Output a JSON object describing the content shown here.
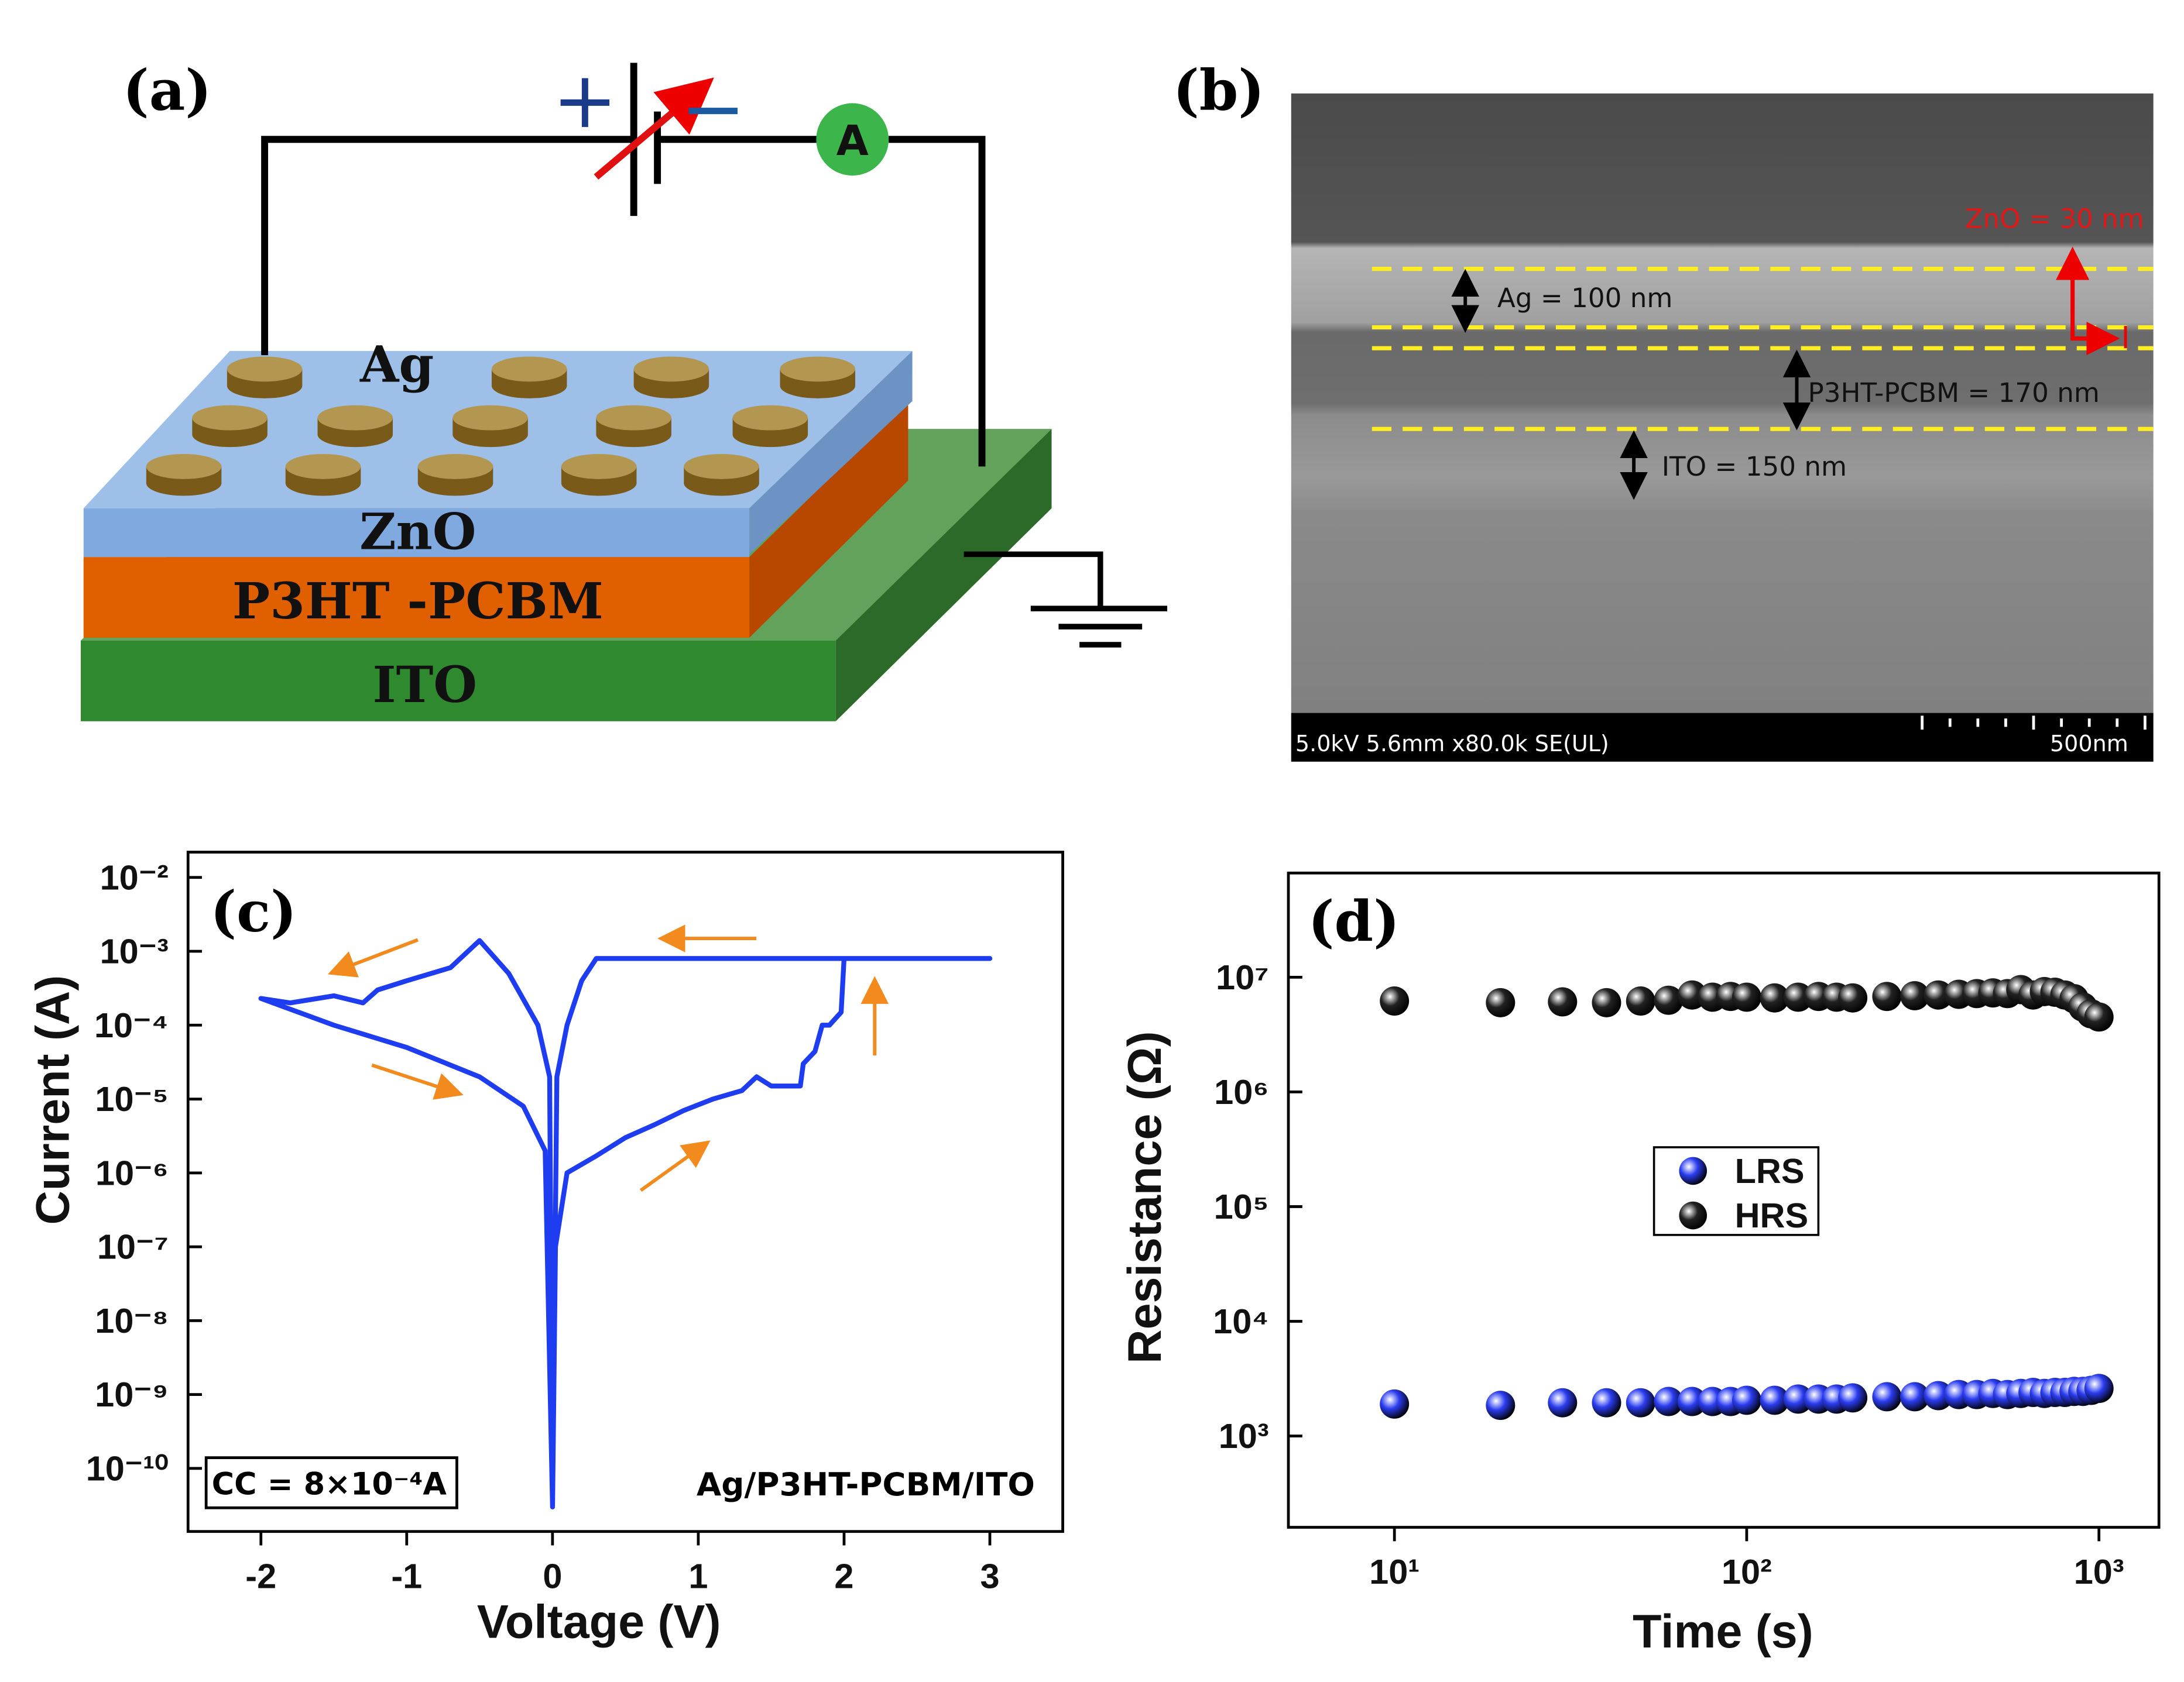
{
  "diagram": {
    "label": "(a)",
    "plus": "+",
    "minus": "−",
    "ammeter": "A",
    "layers": [
      "Ag",
      "ZnO",
      "P3HT -PCBM",
      "ITO"
    ]
  },
  "sem": {
    "label": "(b)",
    "annotations": [
      "ZnO = 30 nm",
      "Ag = 100 nm",
      "P3HT-PCBM = 170 nm",
      "ITO = 150 nm"
    ],
    "info": "5.0kV 5.6mm x80.0k SE(UL)",
    "scale": "500nm"
  },
  "chart_data": [
    {
      "type": "line",
      "label": "(c)",
      "xlabel": "Voltage (V)",
      "ylabel": "Current (A)",
      "annotations": [
        "CC = 8×10⁻⁴A",
        "Ag/P3HT-PCBM/ITO"
      ],
      "x": [
        0,
        0.02,
        0.1,
        0.3,
        0.5,
        0.7,
        0.9,
        1.1,
        1.3,
        1.4,
        1.5,
        1.7,
        1.72,
        1.8,
        1.85,
        1.9,
        1.98,
        2.0,
        3.0,
        0.3,
        0.2,
        0.1,
        0.03,
        0,
        -0.02,
        -0.1,
        -0.3,
        -0.5,
        -0.7,
        -1.0,
        -1.2,
        -1.3,
        -1.5,
        -1.8,
        -2.0,
        -1.5,
        -1.0,
        -0.5,
        -0.2,
        -0.05,
        0
      ],
      "values": [
        3e-11,
        1e-07,
        1e-06,
        1.7e-06,
        3e-06,
        4.5e-06,
        7e-06,
        1e-05,
        1.3e-05,
        2e-05,
        1.5e-05,
        1.5e-05,
        3e-05,
        4.4e-05,
        0.0001,
        0.0001,
        0.00015,
        0.0008,
        0.0008,
        0.0008,
        0.0004,
        0.0001,
        2e-05,
        3e-11,
        2e-05,
        0.0001,
        0.0005,
        0.0014,
        0.0006,
        0.0004,
        0.0003,
        0.0002,
        0.00025,
        0.0002,
        0.00023,
        0.0001,
        5e-05,
        2e-05,
        8e-06,
        2e-06,
        3e-11
      ],
      "color": "#1e3cf0",
      "xlim": [
        -2.5,
        3.5
      ],
      "xticks": [
        -2,
        -1,
        0,
        1,
        2,
        3
      ],
      "ylim": [
        1.4e-11,
        0.022
      ],
      "log_y": true,
      "yticks": [
        {
          "value": 0.01,
          "label": "10⁻²"
        },
        {
          "value": 0.001,
          "label": "10⁻³"
        },
        {
          "value": 0.0001,
          "label": "10⁻⁴"
        },
        {
          "value": 1e-05,
          "label": "10⁻⁵"
        },
        {
          "value": 1e-06,
          "label": "10⁻⁶"
        },
        {
          "value": 1e-07,
          "label": "10⁻⁷"
        },
        {
          "value": 1e-08,
          "label": "10⁻⁸"
        },
        {
          "value": 1e-09,
          "label": "10⁻⁹"
        },
        {
          "value": 1e-10,
          "label": "10⁻¹⁰"
        }
      ]
    },
    {
      "type": "scatter",
      "label": "(d)",
      "xlabel": "Time (s)",
      "ylabel": "Resistance (Ω)",
      "x": [
        10,
        20,
        30,
        40,
        50,
        60,
        70,
        80,
        90,
        100,
        120,
        140,
        160,
        180,
        200,
        250,
        300,
        350,
        400,
        450,
        500,
        550,
        600,
        650,
        700,
        750,
        800,
        850,
        900,
        950,
        1000
      ],
      "series": [
        {
          "name": "LRS",
          "color": "#2a3cf0",
          "values": [
            1900,
            1850,
            1950,
            1950,
            1950,
            2000,
            2000,
            2000,
            2000,
            2050,
            2050,
            2100,
            2100,
            2100,
            2150,
            2200,
            2200,
            2250,
            2300,
            2300,
            2350,
            2300,
            2350,
            2400,
            2350,
            2400,
            2400,
            2450,
            2450,
            2500,
            2600
          ]
        },
        {
          "name": "HRS",
          "color": "#222222",
          "values": [
            6200000.0,
            6000000.0,
            6100000.0,
            6000000.0,
            6200000.0,
            6300000.0,
            7000000.0,
            6700000.0,
            6800000.0,
            6700000.0,
            6600000.0,
            6700000.0,
            6800000.0,
            6700000.0,
            6600000.0,
            6800000.0,
            6900000.0,
            7000000.0,
            7100000.0,
            7200000.0,
            7300000.0,
            7200000.0,
            7800000.0,
            7000000.0,
            7500000.0,
            7400000.0,
            7000000.0,
            6500000.0,
            5500000.0,
            4800000.0,
            4500000.0
          ]
        }
      ],
      "xlim": [
        5,
        1480
      ],
      "log_x": true,
      "xticks": [
        {
          "value": 10,
          "label": "10¹"
        },
        {
          "value": 100,
          "label": "10²"
        },
        {
          "value": 1000,
          "label": "10³"
        }
      ],
      "ylim": [
        160,
        81000000.0
      ],
      "log_y": true,
      "yticks": [
        {
          "value": 1000,
          "label": "10³"
        },
        {
          "value": 10000,
          "label": "10⁴"
        },
        {
          "value": 100000,
          "label": "10⁵"
        },
        {
          "value": 1000000,
          "label": "10⁶"
        },
        {
          "value": 10000000,
          "label": "10⁷"
        }
      ],
      "legend": "center"
    }
  ]
}
